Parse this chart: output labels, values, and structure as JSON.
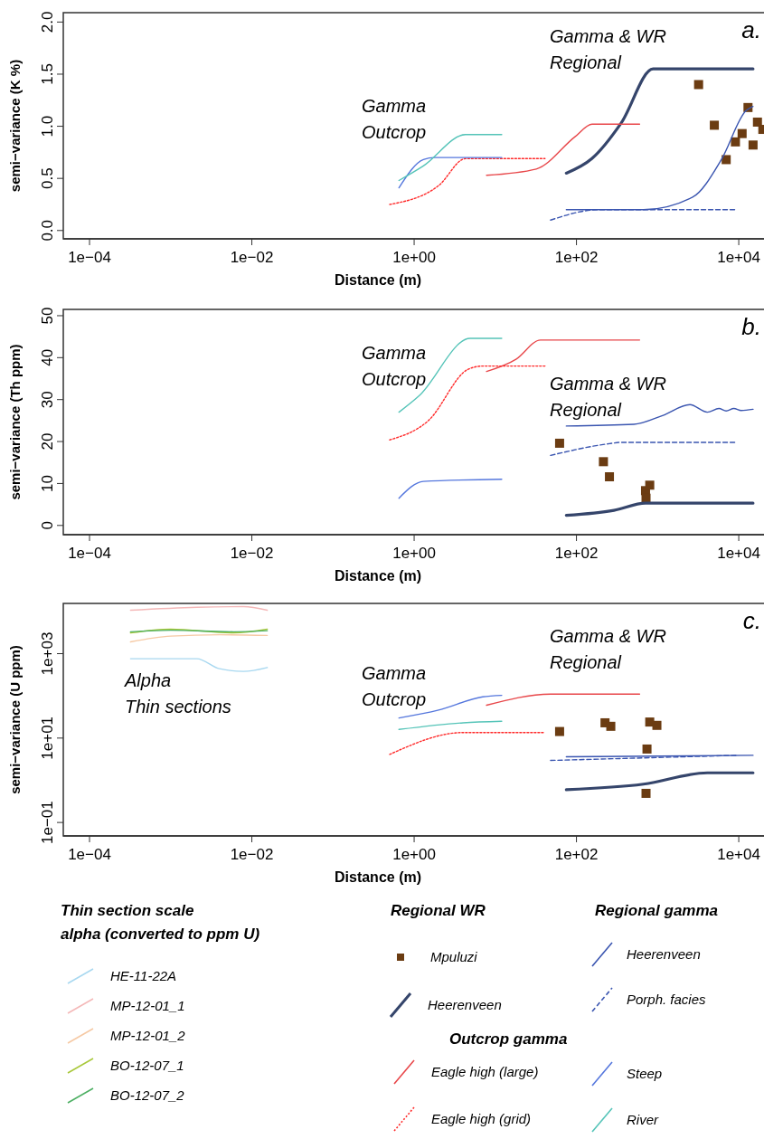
{
  "chart_data": [
    {
      "type": "line",
      "xlabel": "Distance (m)",
      "ylabel": "semi−variance (K %)",
      "log": "x",
      "xlim": [
        4.75e-05,
        21000
      ],
      "ylim": [
        -0.08,
        2.09
      ],
      "xticks": [
        {
          "value": 0.0001,
          "label": "1e−04"
        },
        {
          "value": 0.01,
          "label": "1e−02"
        },
        {
          "value": 1,
          "label": "1e+00"
        },
        {
          "value": 100,
          "label": "1e+02"
        },
        {
          "value": 10000,
          "label": "1e+04"
        }
      ],
      "yticks": [
        {
          "value": 0,
          "label": "0.0"
        },
        {
          "value": 0.5,
          "label": "0.5"
        },
        {
          "value": 1,
          "label": "1.0"
        },
        {
          "value": 1.5,
          "label": "1.5"
        },
        {
          "value": 2,
          "label": "2.0"
        }
      ],
      "annotations": [
        "a.",
        "Gamma\nOutcrop",
        "Gamma & WR\nRegional"
      ],
      "series": [
        {
          "type": "scatter",
          "marker": "square",
          "color": "#6b3c12",
          "x": [
            3200,
            5000,
            7000,
            9100,
            11000,
            13000,
            15000,
            17000,
            19800
          ],
          "values": [
            1.4,
            1.01,
            0.68,
            0.85,
            0.93,
            1.18,
            0.82,
            1.04,
            0.97
          ]
        },
        {
          "color": "#35456b",
          "x": [
            75,
            155,
            355,
            880,
            15000
          ],
          "values": [
            0.55,
            0.69,
            1.03,
            1.55,
            1.55
          ]
        },
        {
          "color": "#3a55b0",
          "x": [
            75,
            670,
            2700,
            6100,
            12300,
            15000
          ],
          "values": [
            0.2,
            0.2,
            0.32,
            0.68,
            1.15,
            1.19
          ]
        },
        {
          "color": "#3a55b0",
          "line_style": "dashed",
          "x": [
            48,
            190,
            9500
          ],
          "values": [
            0.1,
            0.2,
            0.2
          ]
        },
        {
          "color": "#e8474a",
          "x": [
            7.8,
            32,
            96,
            156,
            600
          ],
          "values": [
            0.53,
            0.59,
            0.9,
            1.02,
            1.02
          ]
        },
        {
          "color": "#ff2a2a",
          "line_style": "dotted",
          "x": [
            0.5,
            2,
            4.3,
            41
          ],
          "values": [
            0.25,
            0.43,
            0.69,
            0.69
          ]
        },
        {
          "color": "#5577dd",
          "x": [
            0.65,
            1.3,
            1.8,
            12
          ],
          "values": [
            0.41,
            0.68,
            0.7,
            0.7
          ]
        },
        {
          "color": "#55c4b8",
          "x": [
            0.65,
            1.3,
            4.3,
            12
          ],
          "values": [
            0.48,
            0.62,
            0.92,
            0.92
          ]
        }
      ]
    },
    {
      "type": "line",
      "xlabel": "Distance (m)",
      "ylabel": "semi−variance (Th ppm)",
      "log": "x",
      "xlim": [
        4.75e-05,
        21000
      ],
      "ylim": [
        -2.2,
        51.5
      ],
      "xticks": [
        {
          "value": 0.0001,
          "label": "1e−04"
        },
        {
          "value": 0.01,
          "label": "1e−02"
        },
        {
          "value": 1,
          "label": "1e+00"
        },
        {
          "value": 100,
          "label": "1e+02"
        },
        {
          "value": 10000,
          "label": "1e+04"
        }
      ],
      "yticks": [
        0,
        10,
        20,
        30,
        40,
        50
      ],
      "annotations": [
        "b.",
        "Gamma\nOutcrop",
        "Gamma & WR\nRegional"
      ],
      "series": [
        {
          "type": "scatter",
          "marker": "square",
          "color": "#6b3c12",
          "x": [
            62,
            215,
            255,
            710,
            720,
            800
          ],
          "values": [
            19.6,
            15.2,
            11.6,
            8.3,
            6.5,
            9.6
          ]
        },
        {
          "color": "#35456b",
          "x": [
            75,
            290,
            710,
            15000
          ],
          "values": [
            2.4,
            3.6,
            5.3,
            5.3
          ]
        },
        {
          "color": "#3a55b0",
          "x": [
            75,
            510,
            1150,
            2500,
            4100,
            5700,
            7000,
            8700,
            10700,
            15000
          ],
          "values": [
            23.7,
            24.1,
            26.2,
            28.8,
            27,
            27.9,
            27.3,
            27.9,
            27.4,
            27.7
          ]
        },
        {
          "color": "#3a55b0",
          "line_style": "dashed",
          "x": [
            48,
            255,
            350,
            9500
          ],
          "values": [
            16.7,
            19.5,
            19.8,
            19.8
          ]
        },
        {
          "color": "#e8474a",
          "x": [
            7.8,
            18,
            36,
            600
          ],
          "values": [
            36.7,
            39.6,
            44.2,
            44.2
          ]
        },
        {
          "color": "#ff2a2a",
          "line_style": "dotted",
          "x": [
            0.5,
            1.5,
            4.6,
            7,
            41
          ],
          "values": [
            20.4,
            25,
            37.2,
            38,
            38
          ]
        },
        {
          "color": "#5577dd",
          "x": [
            0.65,
            1.3,
            12
          ],
          "values": [
            6.5,
            10.5,
            11
          ]
        },
        {
          "color": "#55c4b8",
          "x": [
            0.65,
            1.15,
            4.9,
            12
          ],
          "values": [
            27,
            30.9,
            44.6,
            44.6
          ]
        }
      ]
    },
    {
      "type": "line",
      "xlabel": "Distance (m)",
      "ylabel": "semi−variance (U ppm)",
      "log": "xy",
      "xlim": [
        4.75e-05,
        21000
      ],
      "ylim": [
        0.048,
        15500
      ],
      "legend": "bottom",
      "xticks": [
        {
          "value": 0.0001,
          "label": "1e−04"
        },
        {
          "value": 0.01,
          "label": "1e−02"
        },
        {
          "value": 1,
          "label": "1e+00"
        },
        {
          "value": 100,
          "label": "1e+02"
        },
        {
          "value": 10000,
          "label": "1e+04"
        }
      ],
      "yticks": [
        {
          "value": 0.1,
          "label": "1e−01"
        },
        {
          "value": 10,
          "label": "1e+01"
        },
        {
          "value": 1000,
          "label": "1e+03"
        }
      ],
      "annotations": [
        "c.",
        "Alpha\nThin sections",
        "Gamma\nOutcrop",
        "Gamma & WR\nRegional",
        "Thin section scale\nalpha (converted to ppm U)",
        "Regional WR",
        "Regional gamma",
        "Outcrop gamma"
      ],
      "series": [
        {
          "name": "Mpuluzi",
          "type": "scatter",
          "marker": "square",
          "color": "#6b3c12",
          "x": [
            62,
            225,
            265,
            800,
            980,
            740,
            720
          ],
          "values": [
            14.3,
            23,
            19,
            24,
            20,
            5.5,
            0.49
          ]
        },
        {
          "name": "Heerenveen",
          "color": "#35456b",
          "x": [
            75,
            670,
            4100,
            15000
          ],
          "values": [
            0.6,
            0.81,
            1.5,
            1.5
          ]
        },
        {
          "name": "Heerenveen",
          "color": "#3a55b0",
          "x": [
            75,
            15000
          ],
          "values": [
            3.6,
            3.9
          ]
        },
        {
          "name": "Porph. facies",
          "color": "#3a55b0",
          "line_style": "dashed",
          "x": [
            48,
            9500
          ],
          "values": [
            2.95,
            3.9
          ]
        },
        {
          "name": "Eagle high (large)",
          "color": "#e8474a",
          "x": [
            7.8,
            48,
            600
          ],
          "values": [
            60,
            110,
            110
          ]
        },
        {
          "name": "Eagle high (grid)",
          "color": "#ff2a2a",
          "line_style": "dotted",
          "x": [
            0.5,
            4,
            41
          ],
          "values": [
            4.1,
            13.5,
            13.5
          ]
        },
        {
          "name": "Steep",
          "color": "#5577dd",
          "x": [
            0.65,
            2,
            7,
            12
          ],
          "values": [
            30,
            46,
            95,
            103
          ]
        },
        {
          "name": "River",
          "color": "#55c4b8",
          "x": [
            0.65,
            4,
            12
          ],
          "values": [
            16,
            23,
            25
          ]
        },
        {
          "name": "HE-11-22A",
          "color": "#a8d8f0",
          "x": [
            0.00032,
            0.0021,
            0.004,
            0.0079,
            0.0155
          ],
          "values": [
            760,
            760,
            440,
            380,
            470
          ]
        },
        {
          "name": "MP-12-01_1",
          "color": "#f4b8b8",
          "x": [
            0.00032,
            0.0021,
            0.0079,
            0.0155
          ],
          "values": [
            10700,
            12600,
            13000,
            10700
          ]
        },
        {
          "name": "MP-12-01_2",
          "color": "#f6c9a4",
          "x": [
            0.00032,
            0.001,
            0.004,
            0.0155
          ],
          "values": [
            1900,
            2600,
            2800,
            2700
          ]
        },
        {
          "name": "BO-12-07_1",
          "color": "#a8c83a",
          "x": [
            0.00032,
            0.001,
            0.006,
            0.0155
          ],
          "values": [
            3100,
            3800,
            3100,
            3800
          ]
        },
        {
          "name": "BO-12-07_2",
          "color": "#4caf62",
          "x": [
            0.00032,
            0.001,
            0.006,
            0.0155
          ],
          "values": [
            3300,
            3600,
            3300,
            3500
          ]
        }
      ]
    }
  ]
}
